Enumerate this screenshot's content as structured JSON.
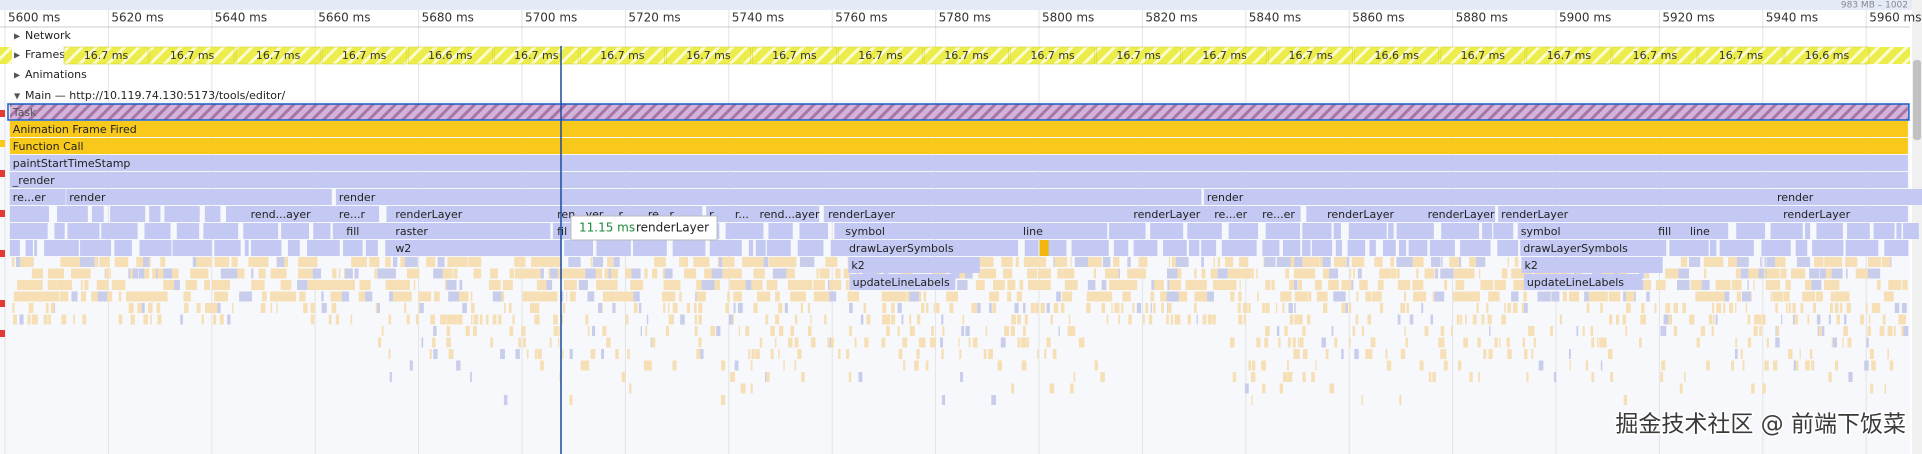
{
  "overview": {
    "memory": "983 MB – 1002"
  },
  "ruler": {
    "labels": [
      "5600 ms",
      "5620 ms",
      "5640 ms",
      "5660 ms",
      "5680 ms",
      "5700 ms",
      "5720 ms",
      "5740 ms",
      "5760 ms",
      "5780 ms",
      "5800 ms",
      "5820 ms",
      "5840 ms",
      "5860 ms",
      "5880 ms",
      "5900 ms",
      "5920 ms",
      "5940 ms",
      "5960 ms"
    ]
  },
  "tracks": {
    "network": "Network",
    "frames": "Frames",
    "animations": "Animations",
    "main": "Main — http://10.119.74.130:5173/tools/editor/"
  },
  "frames": [
    "16.7 ms",
    "16.7 ms",
    "16.7 ms",
    "16.7 ms",
    "16.6 ms",
    "16.7 ms",
    "16.7 ms",
    "16.7 ms",
    "16.7 ms",
    "16.7 ms",
    "16.7 ms",
    "16.7 ms",
    "16.7 ms",
    "16.7 ms",
    "16.7 ms",
    "16.6 ms",
    "16.7 ms",
    "16.7 ms",
    "16.7 ms",
    "16.7 ms",
    "16.6 ms"
  ],
  "flame": {
    "rows": [
      [
        "Task"
      ],
      [
        "Animation Frame Fired"
      ],
      [
        "Function Call"
      ],
      [
        "paintStartTimeStamp"
      ],
      [
        "_render"
      ],
      [
        "re...er",
        "render",
        "render",
        "render",
        "render"
      ],
      [
        "rend...ayer",
        "re...r",
        "renderLayer",
        "ren...yer",
        "r",
        "re...r",
        "r",
        "r...",
        "rend...ayer",
        "renderLayer",
        "renderLayer",
        "re...er",
        "re...er",
        "renderLayer",
        "renderLayer",
        "renderLayer",
        "renderLayer"
      ],
      [
        "fill",
        "raster",
        "fil",
        "symbol",
        "line",
        "symbol",
        "fill",
        "line"
      ],
      [
        "w2",
        "drawLayerSymbols",
        "drawLayerSymbols"
      ],
      [
        "k2",
        "k2"
      ],
      [
        "updateLineLabels",
        "updateLineLabels"
      ]
    ]
  },
  "tooltip": {
    "duration": "11.15 ms",
    "name": "renderLayer"
  },
  "watermark": "掘金技术社区 @ 前端下饭菜"
}
